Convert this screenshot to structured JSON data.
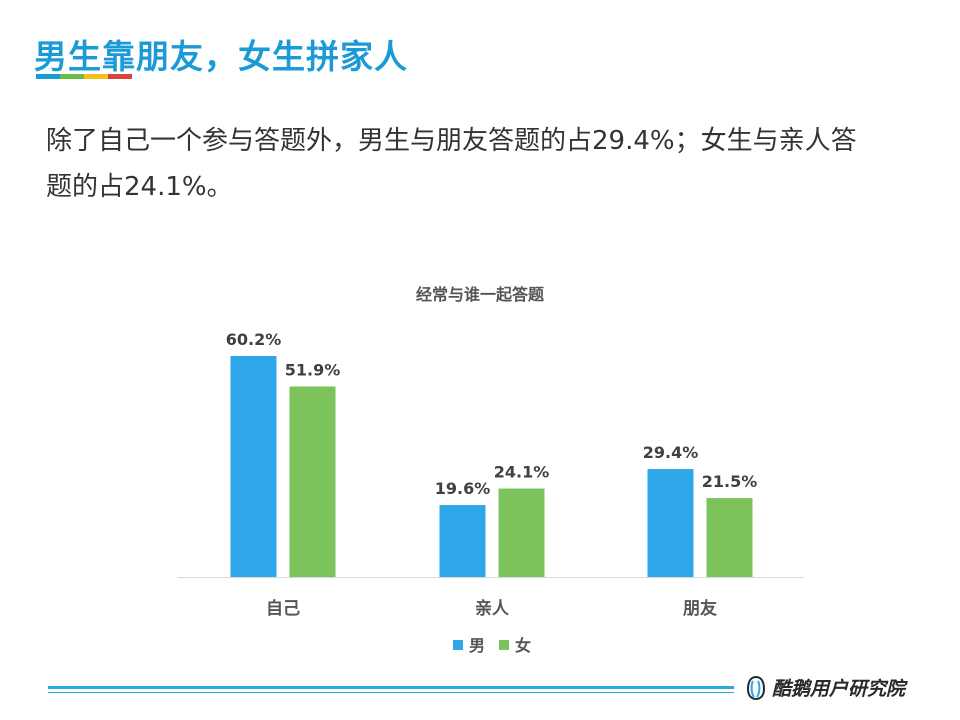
{
  "slide": {
    "title": "男生靠朋友，女生拼家人",
    "title_bar_colors": [
      "#1a9ad6",
      "#6dbb45",
      "#f2c21b",
      "#d9453a"
    ],
    "body": "除了自己一个参与答题外，男生与朋友答题的占29.4%；女生与亲人答题的占24.1%。"
  },
  "chart_data": {
    "type": "bar",
    "title": "经常与谁一起答题",
    "categories": [
      "自己",
      "亲人",
      "朋友"
    ],
    "series": [
      {
        "name": "男",
        "color": "#2ea7e8",
        "values": [
          60.2,
          19.6,
          29.4
        ],
        "labels": [
          "60.2%",
          "19.6%",
          "29.4%"
        ]
      },
      {
        "name": "女",
        "color": "#7bc35a",
        "values": [
          51.9,
          24.1,
          21.5
        ],
        "labels": [
          "51.9%",
          "24.1%",
          "21.5%"
        ]
      }
    ],
    "ylim": [
      0,
      70
    ],
    "grid": false,
    "legend": "bottom"
  },
  "footer": {
    "brand": "酷鹅用户研究院",
    "logo_icon": "penguin-logo-icon"
  }
}
